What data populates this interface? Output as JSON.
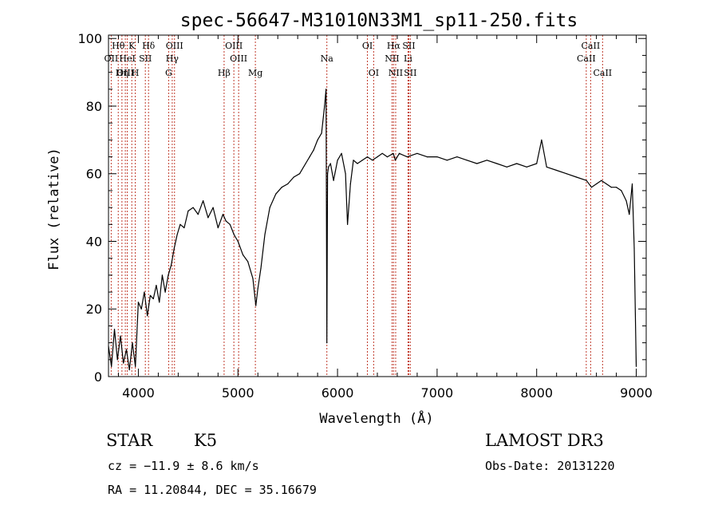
{
  "chart_data": {
    "type": "line",
    "title": "spec-56647-M31010N33M1_sp11-250.fits",
    "xlabel": "Wavelength (Å)",
    "ylabel": "Flux (relative)",
    "xlim": [
      3700,
      9100
    ],
    "ylim": [
      0,
      101
    ],
    "x_ticks": [
      4000,
      5000,
      6000,
      7000,
      8000,
      9000
    ],
    "y_ticks": [
      0,
      20,
      40,
      60,
      80,
      100
    ],
    "grid": false,
    "series": [
      {
        "name": "flux",
        "x": [
          3700,
          3730,
          3760,
          3790,
          3820,
          3850,
          3880,
          3910,
          3940,
          3970,
          4000,
          4030,
          4060,
          4090,
          4120,
          4150,
          4180,
          4210,
          4240,
          4270,
          4300,
          4330,
          4360,
          4390,
          4420,
          4460,
          4500,
          4550,
          4600,
          4650,
          4700,
          4750,
          4800,
          4850,
          4880,
          4920,
          4960,
          5000,
          5050,
          5100,
          5150,
          5180,
          5200,
          5230,
          5270,
          5320,
          5380,
          5440,
          5500,
          5560,
          5620,
          5680,
          5720,
          5760,
          5800,
          5840,
          5870,
          5885,
          5893,
          5900,
          5910,
          5930,
          5960,
          6000,
          6040,
          6080,
          6100,
          6130,
          6160,
          6200,
          6250,
          6300,
          6350,
          6400,
          6450,
          6500,
          6560,
          6580,
          6620,
          6700,
          6800,
          6900,
          7000,
          7100,
          7200,
          7300,
          7400,
          7500,
          7600,
          7700,
          7800,
          7900,
          8000,
          8050,
          8100,
          8200,
          8300,
          8400,
          8500,
          8550,
          8600,
          8650,
          8700,
          8750,
          8800,
          8850,
          8900,
          8930,
          8960,
          8980,
          9000
        ],
        "y": [
          9,
          3,
          14,
          5,
          12,
          4,
          8,
          2,
          10,
          3,
          22,
          20,
          25,
          18,
          24,
          23,
          27,
          22,
          30,
          25,
          30,
          33,
          38,
          42,
          45,
          44,
          49,
          50,
          48,
          52,
          47,
          50,
          44,
          48,
          46,
          45,
          42,
          40,
          36,
          34,
          29,
          21,
          26,
          32,
          42,
          50,
          54,
          56,
          57,
          59,
          60,
          63,
          65,
          67,
          70,
          72,
          80,
          85,
          10,
          60,
          62,
          63,
          58,
          64,
          66,
          60,
          45,
          57,
          64,
          63,
          64,
          65,
          64,
          65,
          66,
          65,
          66,
          64,
          66,
          65,
          66,
          65,
          65,
          64,
          65,
          64,
          63,
          64,
          63,
          62,
          63,
          62,
          63,
          70,
          62,
          61,
          60,
          59,
          58,
          56,
          57,
          58,
          57,
          56,
          56,
          55,
          52,
          48,
          57,
          38,
          3
        ]
      }
    ],
    "lines": [
      {
        "label": "Hθ",
        "x": 3798,
        "row": 1
      },
      {
        "label": "OII",
        "x": 3727,
        "row": 2
      },
      {
        "label": "OIII",
        "x": 3869,
        "row": 3
      },
      {
        "label": "Hη",
        "x": 3835,
        "row": 3
      },
      {
        "label": "K",
        "x": 3934,
        "row": 1
      },
      {
        "label": "H",
        "x": 3969,
        "row": 3
      },
      {
        "label": "HeI",
        "x": 3889,
        "row": 2
      },
      {
        "label": "SII",
        "x": 4070,
        "row": 2
      },
      {
        "label": "Hδ",
        "x": 4102,
        "row": 1
      },
      {
        "label": "OIII",
        "x": 4363,
        "row": 1
      },
      {
        "label": "Hγ",
        "x": 4340,
        "row": 2
      },
      {
        "label": "G",
        "x": 4304,
        "row": 3
      },
      {
        "label": "OIII",
        "x": 4959,
        "row": 1
      },
      {
        "label": "OIII",
        "x": 5007,
        "row": 2
      },
      {
        "label": "Hβ",
        "x": 4861,
        "row": 3
      },
      {
        "label": "Mg",
        "x": 5175,
        "row": 3
      },
      {
        "label": "Na",
        "x": 5893,
        "row": 2
      },
      {
        "label": "OI",
        "x": 6300,
        "row": 1
      },
      {
        "label": "OI",
        "x": 6363,
        "row": 3
      },
      {
        "label": "Hα",
        "x": 6563,
        "row": 1
      },
      {
        "label": "NII",
        "x": 6548,
        "row": 2
      },
      {
        "label": "NII",
        "x": 6584,
        "row": 3
      },
      {
        "label": "SII",
        "x": 6716,
        "row": 1
      },
      {
        "label": "Li",
        "x": 6708,
        "row": 2
      },
      {
        "label": "SII",
        "x": 6731,
        "row": 3
      },
      {
        "label": "CaII",
        "x": 8542,
        "row": 1
      },
      {
        "label": "CaII",
        "x": 8498,
        "row": 2
      },
      {
        "label": "CaII",
        "x": 8662,
        "row": 3
      }
    ]
  },
  "info": {
    "class_label": "STAR",
    "subclass_label": "K5",
    "survey": "LAMOST DR3",
    "cz": "cz = −11.9 ± 8.6 km/s",
    "obs_date": "Obs-Date: 20131220",
    "coords": "RA =  11.20844, DEC =  35.16679"
  },
  "colors": {
    "line_marker": "#c03a2b",
    "spectrum": "#000000"
  }
}
